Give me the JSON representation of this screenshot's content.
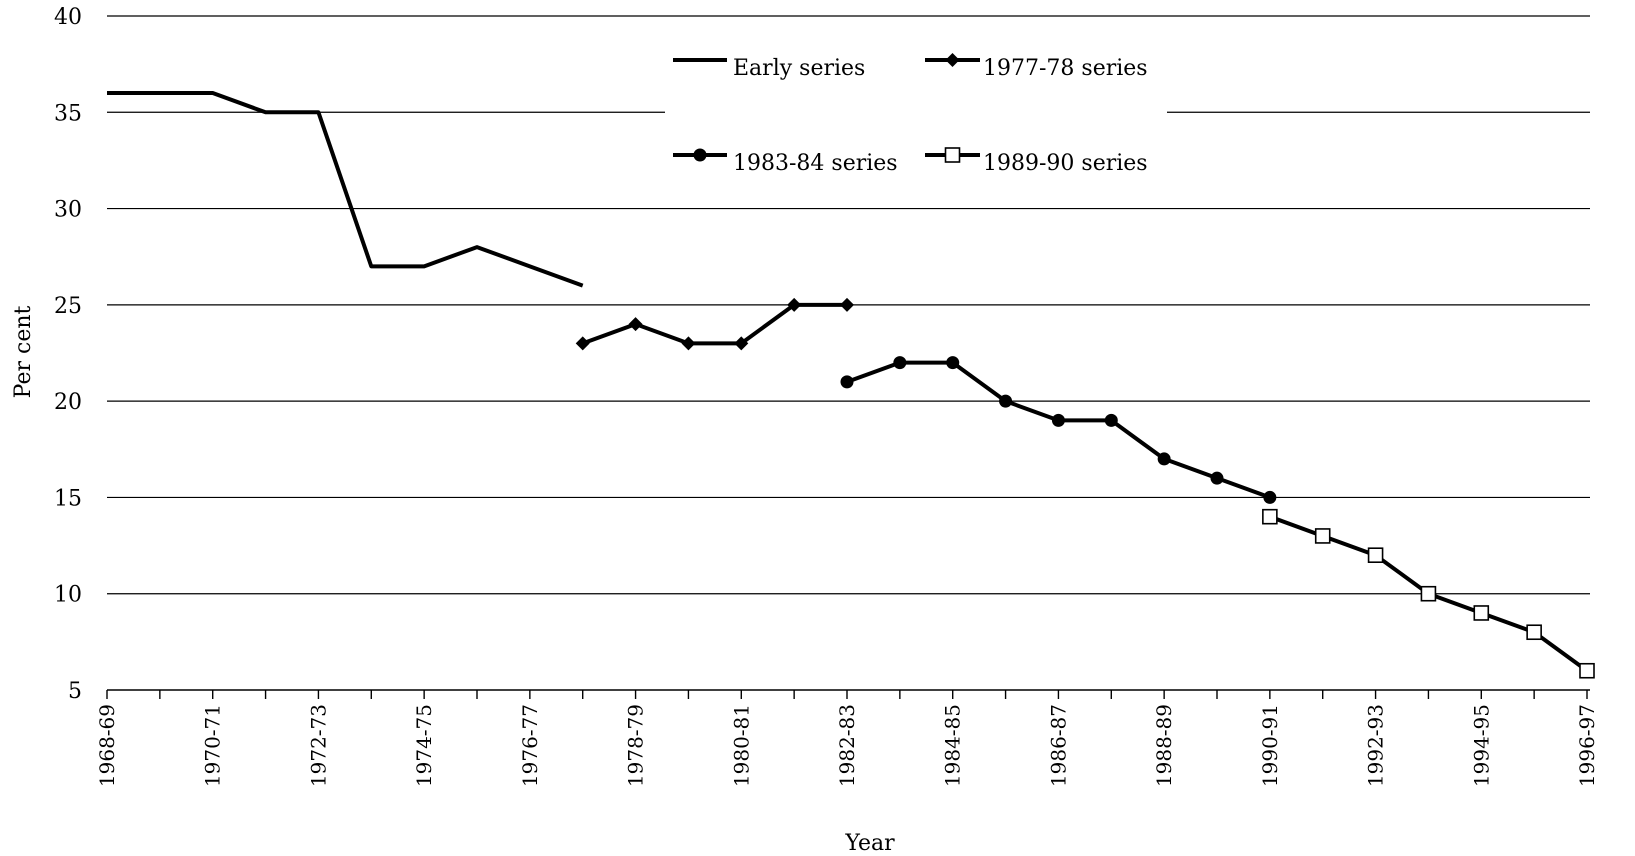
{
  "chart_data": {
    "type": "line",
    "title": "",
    "xlabel": "Year",
    "ylabel": "Per cent",
    "ylim": [
      5,
      40
    ],
    "yticks": [
      5,
      10,
      15,
      20,
      25,
      30,
      35,
      40
    ],
    "grid": true,
    "legend_position": "top-center",
    "x_tick_labels": [
      "1968-69",
      "1970-71",
      "1972-73",
      "1974-75",
      "1976-77",
      "1978-79",
      "1980-81",
      "1982-83",
      "1984-85",
      "1986-87",
      "1988-89",
      "1990-91",
      "1992-93",
      "1994-95",
      "1996-97"
    ],
    "series": [
      {
        "name": "Early series",
        "marker": "none",
        "points": [
          [
            1968,
            36
          ],
          [
            1969,
            36
          ],
          [
            1970,
            36
          ],
          [
            1971,
            35
          ],
          [
            1972,
            35
          ],
          [
            1973,
            27
          ],
          [
            1974,
            27
          ],
          [
            1975,
            28
          ],
          [
            1976,
            27
          ],
          [
            1977,
            26
          ]
        ]
      },
      {
        "name": "1977-78 series",
        "marker": "diamond",
        "points": [
          [
            1977,
            23
          ],
          [
            1978,
            24
          ],
          [
            1979,
            23
          ],
          [
            1980,
            23
          ],
          [
            1981,
            25
          ],
          [
            1982,
            25
          ]
        ]
      },
      {
        "name": "1983-84 series",
        "marker": "circle",
        "points": [
          [
            1982,
            21
          ],
          [
            1983,
            22
          ],
          [
            1984,
            22
          ],
          [
            1985,
            20
          ],
          [
            1986,
            19
          ],
          [
            1987,
            19
          ],
          [
            1988,
            17
          ],
          [
            1989,
            16
          ],
          [
            1990,
            15
          ]
        ]
      },
      {
        "name": "1989-90 series",
        "marker": "square-open",
        "points": [
          [
            1990,
            14
          ],
          [
            1991,
            13
          ],
          [
            1992,
            12
          ],
          [
            1993,
            10
          ],
          [
            1994,
            9
          ],
          [
            1995,
            8
          ],
          [
            1996,
            6
          ]
        ]
      }
    ]
  }
}
